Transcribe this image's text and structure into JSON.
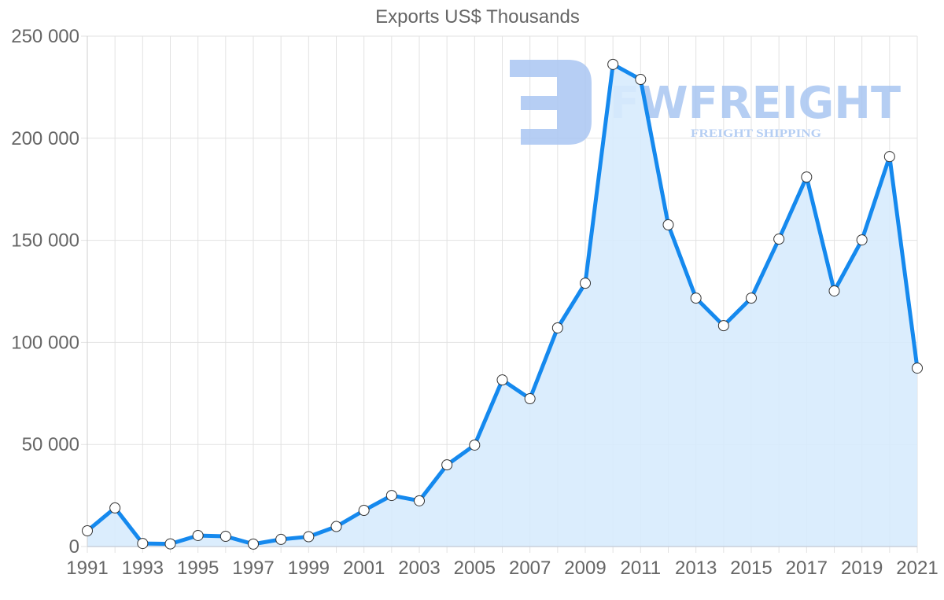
{
  "chart": {
    "title": "Exports US$ Thousands",
    "line_color": "#1589ee",
    "fill_color": "#d7ebfd",
    "point_fill": "#ffffff",
    "point_stroke": "#333333",
    "grid_color": "#e2e2e2",
    "tick_color": "#666666"
  },
  "watermark": {
    "brand": "FWFREIGHT",
    "tagline": "FREIGHT SHIPPING",
    "color": "#a9c6f2"
  },
  "chart_data": {
    "type": "area",
    "title": "Exports US$ Thousands",
    "xlabel": "",
    "ylabel": "",
    "ylim": [
      0,
      250000
    ],
    "yticks": [
      0,
      50000,
      100000,
      150000,
      200000,
      250000
    ],
    "ytick_labels": [
      "0",
      "50 000",
      "100 000",
      "150 000",
      "200 000",
      "250 000"
    ],
    "xtick_labels": [
      "1991",
      "1993",
      "1995",
      "1997",
      "1999",
      "2001",
      "2003",
      "2005",
      "2007",
      "2009",
      "2011",
      "2013",
      "2015",
      "2017",
      "2019",
      "2021"
    ],
    "grid": true,
    "legend": "none",
    "categories": [
      "1991",
      "1992",
      "1993",
      "1994",
      "1995",
      "1996",
      "1997",
      "1998",
      "1999",
      "2000",
      "2001",
      "2002",
      "2003",
      "2004",
      "2005",
      "2006",
      "2007",
      "2008",
      "2009",
      "2010",
      "2011",
      "2012",
      "2013",
      "2014",
      "2015",
      "2016",
      "2017",
      "2018",
      "2019",
      "2020",
      "2021"
    ],
    "series": [
      {
        "name": "Exports US$ Thousands",
        "values": [
          7700,
          18900,
          1500,
          1300,
          5400,
          5000,
          1200,
          3500,
          4800,
          9800,
          17700,
          25000,
          22400,
          40000,
          49700,
          81600,
          72400,
          107100,
          129000,
          236200,
          228800,
          157600,
          121700,
          108200,
          121700,
          150600,
          181000,
          125200,
          150200,
          191000,
          87400
        ]
      }
    ]
  }
}
